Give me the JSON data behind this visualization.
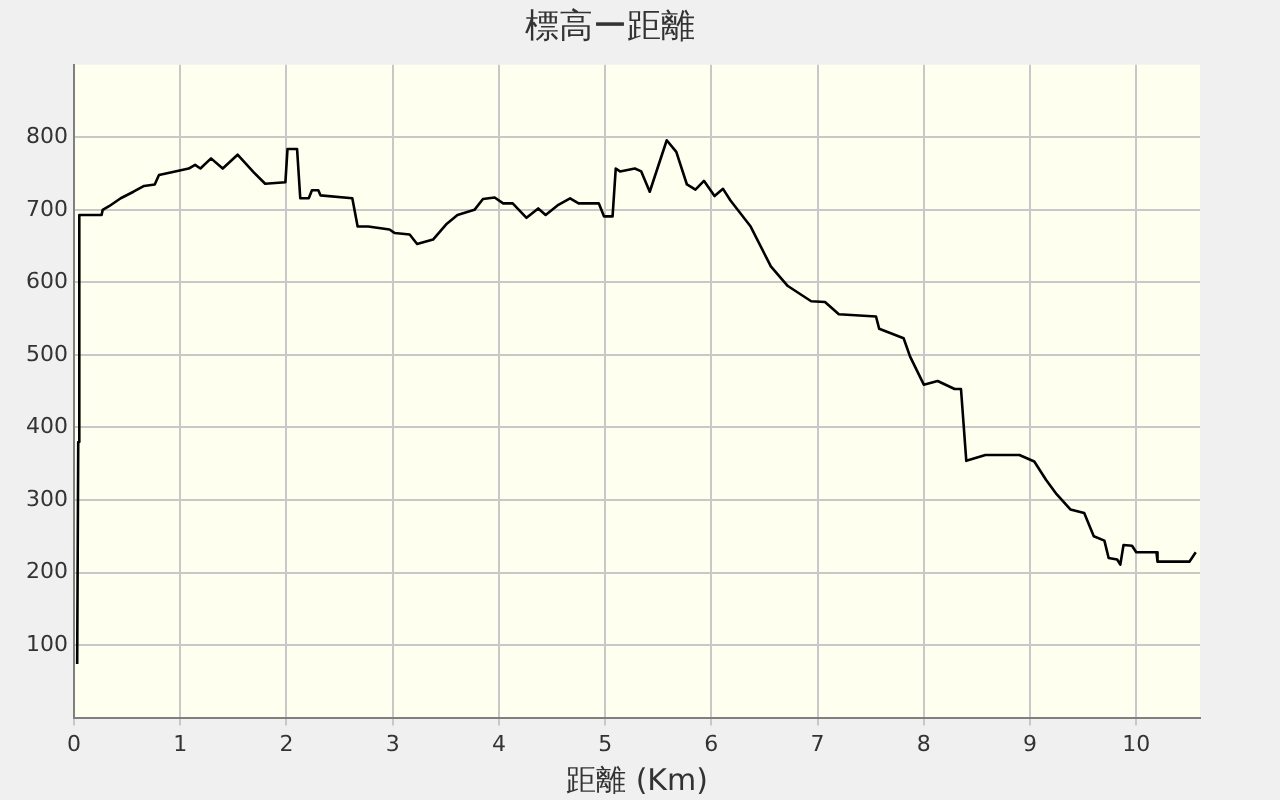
{
  "chart_data": {
    "type": "line",
    "title": "標高ー距離",
    "xlabel": "距離 (Km)",
    "x": [
      0.03,
      0.04,
      0.05,
      0.26,
      0.27,
      0.33,
      0.44,
      0.56,
      0.66,
      0.76,
      0.8,
      0.92,
      1.08,
      1.14,
      1.19,
      1.29,
      1.4,
      1.54,
      1.69,
      1.8,
      1.99,
      2.01,
      2.1,
      2.13,
      2.21,
      2.24,
      2.3,
      2.32,
      2.62,
      2.67,
      2.77,
      2.97,
      3.02,
      3.16,
      3.23,
      3.38,
      3.51,
      3.61,
      3.77,
      3.85,
      3.96,
      4.04,
      4.13,
      4.26,
      4.37,
      4.44,
      4.56,
      4.67,
      4.75,
      4.94,
      4.99,
      5.07,
      5.1,
      5.14,
      5.28,
      5.34,
      5.42,
      5.58,
      5.67,
      5.77,
      5.85,
      5.93,
      6.03,
      6.11,
      6.18,
      6.37,
      6.56,
      6.72,
      6.94,
      7.07,
      7.2,
      7.55,
      7.58,
      7.81,
      7.87,
      8.0,
      8.13,
      8.29,
      8.35,
      8.4,
      8.58,
      8.9,
      9.04,
      9.15,
      9.25,
      9.38,
      9.51,
      9.6,
      9.7,
      9.74,
      9.82,
      9.85,
      9.88,
      9.96,
      10.0,
      10.19,
      10.2,
      10.5,
      10.56
    ],
    "series": [
      {
        "color": "#000000",
        "values": [
          74,
          380,
          693,
          693,
          700,
          705,
          716,
          725,
          733,
          735,
          748,
          752,
          757,
          762,
          757,
          771,
          757,
          776,
          752,
          736,
          738,
          784,
          784,
          716,
          716,
          727,
          727,
          720,
          716,
          677,
          677,
          673,
          668,
          666,
          653,
          659,
          681,
          693,
          700,
          715,
          717,
          709,
          709,
          689,
          702,
          693,
          707,
          716,
          709,
          709,
          691,
          691,
          757,
          753,
          757,
          753,
          725,
          796,
          780,
          735,
          728,
          740,
          719,
          729,
          713,
          677,
          622,
          595,
          574,
          573,
          556,
          553,
          536,
          523,
          498,
          459,
          464,
          453,
          453,
          354,
          362,
          362,
          353,
          328,
          308,
          287,
          282,
          250,
          244,
          220,
          218,
          211,
          238,
          237,
          228,
          228,
          215,
          215,
          228
        ]
      }
    ],
    "xlim": [
      0,
      10.6
    ],
    "ylim": [
      0,
      900
    ],
    "xticks": [
      0,
      1,
      2,
      3,
      4,
      5,
      6,
      7,
      8,
      9,
      10
    ],
    "yticks": [
      100,
      200,
      300,
      400,
      500,
      600,
      700,
      800
    ],
    "grid": true,
    "legend": false,
    "marker": "none",
    "line_style": "solid"
  }
}
